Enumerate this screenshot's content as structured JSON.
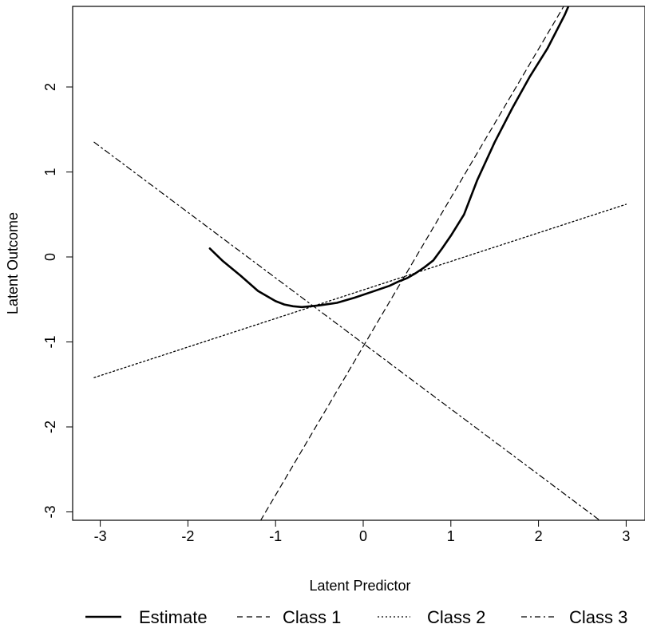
{
  "chart_data": {
    "type": "line",
    "title": "",
    "xlabel": "Latent Predictor",
    "ylabel": "Latent Outcome",
    "xlim": [
      -3.3,
      3.0
    ],
    "ylim": [
      -3.1,
      3.0
    ],
    "xticks": [
      -3,
      -2,
      -1,
      0,
      1,
      2,
      3
    ],
    "xtick_labels": [
      "-3",
      "-2",
      "-1",
      "0",
      "1",
      "2",
      "3"
    ],
    "yticks": [
      -3,
      -2,
      -1,
      0,
      1,
      2
    ],
    "ytick_labels": [
      "-3",
      "-2",
      "-1",
      "0",
      "1",
      "2"
    ],
    "grid": false,
    "legend_position": "bottom",
    "series": [
      {
        "name": "Estimate",
        "style": "solid",
        "x": [
          -1.75,
          -1.6,
          -1.4,
          -1.2,
          -1.0,
          -0.9,
          -0.8,
          -0.7,
          -0.6,
          -0.5,
          -0.3,
          -0.1,
          0.1,
          0.3,
          0.4,
          0.5,
          0.6,
          0.7,
          0.8,
          0.9,
          1.0,
          1.15,
          1.3,
          1.5,
          1.7,
          1.9,
          2.1,
          2.3,
          2.35
        ],
        "y": [
          0.1,
          -0.05,
          -0.22,
          -0.4,
          -0.52,
          -0.56,
          -0.58,
          -0.59,
          -0.58,
          -0.57,
          -0.54,
          -0.48,
          -0.41,
          -0.34,
          -0.29,
          -0.25,
          -0.19,
          -0.12,
          -0.04,
          0.1,
          0.25,
          0.5,
          0.9,
          1.35,
          1.75,
          2.12,
          2.45,
          2.85,
          2.97
        ]
      },
      {
        "name": "Class 1",
        "style": "dashed",
        "x": [
          -1.17,
          2.3
        ],
        "y": [
          -3.1,
          2.97
        ]
      },
      {
        "name": "Class 2",
        "style": "dotted",
        "x": [
          -3.07,
          3.0
        ],
        "y": [
          -1.42,
          0.62
        ]
      },
      {
        "name": "Class 3",
        "style": "dotdash",
        "x": [
          -3.07,
          2.7
        ],
        "y": [
          1.35,
          -3.1
        ]
      }
    ]
  }
}
